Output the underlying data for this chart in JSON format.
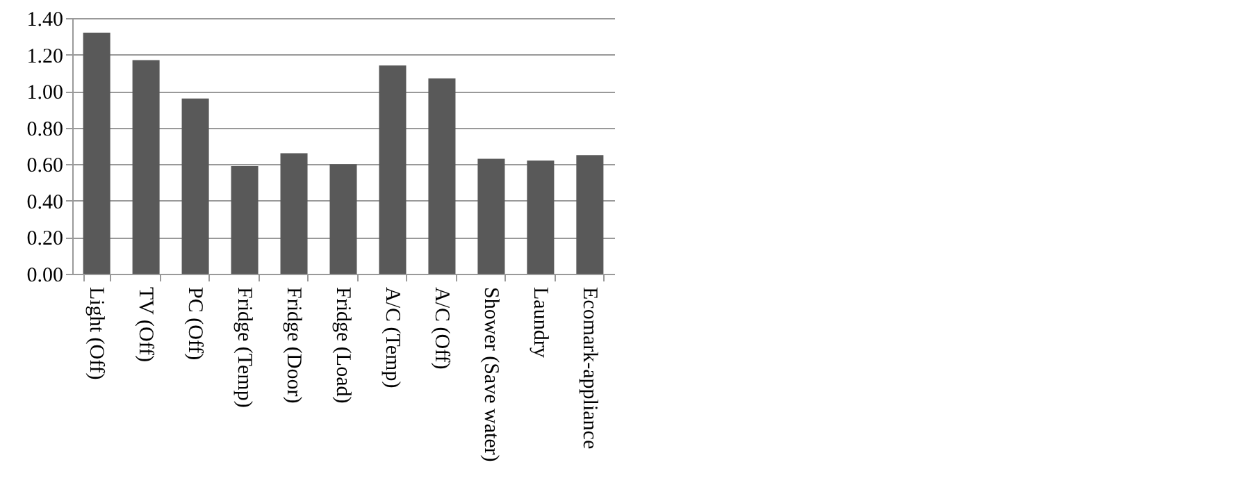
{
  "chart_data": {
    "type": "bar",
    "categories": [
      "Light (Off)",
      "TV (Off)",
      "PC (Off)",
      "Fridge (Temp)",
      "Fridge (Door)",
      "Fridge (Load)",
      "A/C (Temp)",
      "A/C (Off)",
      "Shower (Save water)",
      "Laundry",
      "Ecomark-appliance"
    ],
    "values": [
      1.32,
      1.17,
      0.96,
      0.59,
      0.66,
      0.6,
      1.14,
      1.07,
      0.63,
      0.62,
      0.65
    ],
    "color": "#595959",
    "ylim": [
      0,
      1.4
    ],
    "yticks": [
      {
        "value": 0,
        "label": "0.00"
      },
      {
        "value": 0.2,
        "label": "0.20"
      },
      {
        "value": 0.4,
        "label": "0.40"
      },
      {
        "value": 0.6,
        "label": "0.60"
      },
      {
        "value": 0.8,
        "label": "0.80"
      },
      {
        "value": 1.0,
        "label": "1.00"
      },
      {
        "value": 1.2,
        "label": "1.20"
      },
      {
        "value": 1.4,
        "label": "1.40"
      }
    ],
    "grid": "y"
  }
}
